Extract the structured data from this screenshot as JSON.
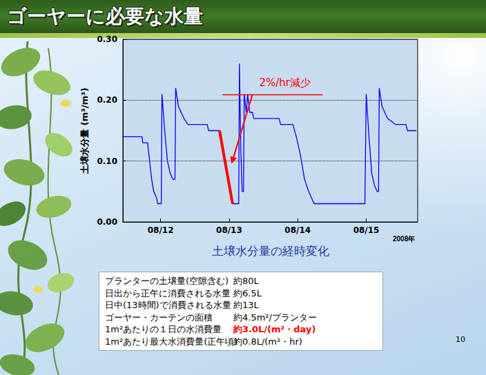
{
  "header": {
    "title": "ゴーヤーに必要な水量"
  },
  "chart_data": {
    "type": "line",
    "title": "土壌水分量の経時変化",
    "y_label": "土壌水分量 (m³/m³)",
    "x_label": "2008年",
    "series": [
      {
        "color": "#0000ff",
        "x": [
          11.46,
          11.73,
          11.74,
          11.81,
          11.84,
          11.87,
          11.9,
          11.94,
          11.96,
          12.01,
          12.02,
          12.06,
          12.1,
          12.14,
          12.18,
          12.21,
          12.22,
          12.26,
          12.3,
          12.34,
          12.4,
          12.68,
          12.7,
          12.86,
          12.9,
          12.94,
          12.98,
          13.02,
          13.05,
          13.14,
          13.15,
          13.17,
          13.19,
          13.21,
          13.22,
          13.25,
          13.27,
          13.3,
          13.34,
          13.36,
          13.73,
          13.75,
          13.93,
          13.98,
          14.04,
          14.1,
          14.16,
          14.2,
          14.24,
          14.98,
          15.0,
          15.04,
          15.08,
          15.12,
          15.16,
          15.18,
          15.19,
          15.23,
          15.27,
          15.31,
          15.43,
          15.58,
          15.6,
          15.73
        ],
        "values": [
          0.14,
          0.14,
          0.13,
          0.13,
          0.1,
          0.07,
          0.05,
          0.04,
          0.03,
          0.03,
          0.21,
          0.15,
          0.1,
          0.08,
          0.07,
          0.07,
          0.22,
          0.19,
          0.18,
          0.17,
          0.16,
          0.16,
          0.15,
          0.15,
          0.13,
          0.1,
          0.07,
          0.05,
          0.03,
          0.03,
          0.26,
          0.12,
          0.05,
          0.05,
          0.21,
          0.18,
          0.21,
          0.18,
          0.18,
          0.17,
          0.17,
          0.16,
          0.16,
          0.14,
          0.11,
          0.07,
          0.05,
          0.04,
          0.03,
          0.03,
          0.21,
          0.14,
          0.08,
          0.06,
          0.05,
          0.05,
          0.22,
          0.19,
          0.18,
          0.17,
          0.16,
          0.16,
          0.15,
          0.15
        ]
      },
      {
        "color": "#ff0000",
        "x": [
          12.86,
          13.05
        ],
        "values": [
          0.15,
          0.03
        ]
      }
    ],
    "annotations": [
      {
        "text": "2%/hr減少",
        "color": "#ff0000"
      }
    ],
    "xlim": [
      11.45,
      15.75
    ],
    "xticks": [
      {
        "value": 12,
        "label": "08/12"
      },
      {
        "value": 13,
        "label": "08/13"
      },
      {
        "value": 14,
        "label": "08/14"
      },
      {
        "value": 15,
        "label": "08/15"
      }
    ],
    "ylim": [
      0,
      0.3
    ],
    "yticks": [
      {
        "value": 0,
        "label": "0.00"
      },
      {
        "value": 0.1,
        "label": "0.10"
      },
      {
        "value": 0.2,
        "label": "0.20"
      },
      {
        "value": 0.3,
        "label": "0.30"
      }
    ],
    "grid": true
  },
  "table": {
    "rows": [
      {
        "label": "プランターの土壌量(空隙含む)",
        "value": "約80L"
      },
      {
        "label": "日出から正午に消費される水量",
        "value": "約6.5L"
      },
      {
        "label": "日中(13時間)で消費される水量",
        "value": "約13L"
      },
      {
        "label": "ゴーヤー・カーテンの面積",
        "value": "約4.5m²/プランター"
      },
      {
        "label": "1m²あたりの１日の水消費量",
        "value": "約3.0L/(m²・day)",
        "color": "#ff0000"
      },
      {
        "label": "1m²あたり最大水消費量(正午頃)",
        "value": "約0.8L/(m²・hr)"
      }
    ]
  },
  "page_number": "10"
}
